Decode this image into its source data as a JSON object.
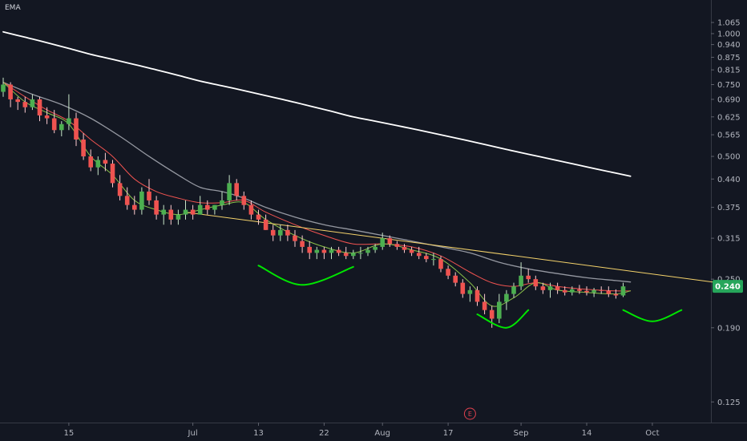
{
  "chart_data": {
    "type": "line",
    "title": "EMA",
    "y_axis": {
      "scale": "log",
      "ylim": [
        0.118,
        1.14
      ],
      "side": "right",
      "tick_labels": [
        "1.065",
        "1.000",
        "0.940",
        "0.875",
        "0.815",
        "0.750",
        "0.690",
        "0.625",
        "0.565",
        "0.500",
        "0.440",
        "0.375",
        "0.315",
        "0.250",
        "0.190",
        "0.125"
      ]
    },
    "x_axis": {
      "tick_labels": [
        "15",
        "Jul",
        "13",
        "22",
        "Aug",
        "17",
        "Sep",
        "14",
        "Oct"
      ],
      "tick_positions": [
        9,
        26,
        35,
        44,
        52,
        61,
        71,
        80,
        89
      ]
    },
    "last_price": {
      "label": "0.240",
      "value": 0.24
    },
    "event_marker": {
      "label": "E",
      "bar": 64
    },
    "candles": [
      [
        0.72,
        0.78,
        0.7,
        0.75
      ],
      [
        0.75,
        0.76,
        0.66,
        0.69
      ],
      [
        0.69,
        0.7,
        0.65,
        0.68
      ],
      [
        0.68,
        0.7,
        0.64,
        0.66
      ],
      [
        0.66,
        0.71,
        0.65,
        0.69
      ],
      [
        0.69,
        0.7,
        0.61,
        0.63
      ],
      [
        0.63,
        0.66,
        0.6,
        0.62
      ],
      [
        0.62,
        0.65,
        0.57,
        0.58
      ],
      [
        0.58,
        0.61,
        0.56,
        0.6
      ],
      [
        0.6,
        0.71,
        0.58,
        0.62
      ],
      [
        0.62,
        0.64,
        0.53,
        0.55
      ],
      [
        0.55,
        0.57,
        0.49,
        0.5
      ],
      [
        0.5,
        0.52,
        0.46,
        0.47
      ],
      [
        0.47,
        0.5,
        0.45,
        0.49
      ],
      [
        0.49,
        0.51,
        0.46,
        0.48
      ],
      [
        0.48,
        0.49,
        0.42,
        0.43
      ],
      [
        0.43,
        0.45,
        0.39,
        0.4
      ],
      [
        0.4,
        0.42,
        0.37,
        0.38
      ],
      [
        0.38,
        0.4,
        0.36,
        0.37
      ],
      [
        0.37,
        0.42,
        0.36,
        0.41
      ],
      [
        0.41,
        0.44,
        0.38,
        0.39
      ],
      [
        0.39,
        0.4,
        0.35,
        0.36
      ],
      [
        0.36,
        0.38,
        0.34,
        0.37
      ],
      [
        0.37,
        0.38,
        0.34,
        0.35
      ],
      [
        0.35,
        0.37,
        0.34,
        0.36
      ],
      [
        0.36,
        0.39,
        0.35,
        0.37
      ],
      [
        0.37,
        0.38,
        0.35,
        0.36
      ],
      [
        0.36,
        0.4,
        0.36,
        0.38
      ],
      [
        0.38,
        0.39,
        0.36,
        0.37
      ],
      [
        0.37,
        0.38,
        0.36,
        0.38
      ],
      [
        0.38,
        0.41,
        0.37,
        0.39
      ],
      [
        0.39,
        0.45,
        0.38,
        0.43
      ],
      [
        0.43,
        0.44,
        0.39,
        0.4
      ],
      [
        0.4,
        0.41,
        0.37,
        0.38
      ],
      [
        0.38,
        0.39,
        0.35,
        0.36
      ],
      [
        0.36,
        0.37,
        0.34,
        0.35
      ],
      [
        0.35,
        0.36,
        0.33,
        0.33
      ],
      [
        0.33,
        0.34,
        0.31,
        0.32
      ],
      [
        0.32,
        0.34,
        0.31,
        0.33
      ],
      [
        0.33,
        0.34,
        0.31,
        0.32
      ],
      [
        0.32,
        0.33,
        0.3,
        0.31
      ],
      [
        0.31,
        0.32,
        0.29,
        0.3
      ],
      [
        0.3,
        0.31,
        0.28,
        0.29
      ],
      [
        0.29,
        0.3,
        0.28,
        0.295
      ],
      [
        0.295,
        0.3,
        0.28,
        0.29
      ],
      [
        0.29,
        0.3,
        0.28,
        0.295
      ],
      [
        0.295,
        0.3,
        0.285,
        0.29
      ],
      [
        0.29,
        0.3,
        0.28,
        0.285
      ],
      [
        0.285,
        0.295,
        0.28,
        0.29
      ],
      [
        0.29,
        0.3,
        0.28,
        0.29
      ],
      [
        0.29,
        0.3,
        0.285,
        0.295
      ],
      [
        0.295,
        0.305,
        0.29,
        0.3
      ],
      [
        0.3,
        0.325,
        0.295,
        0.315
      ],
      [
        0.315,
        0.32,
        0.3,
        0.305
      ],
      [
        0.305,
        0.31,
        0.295,
        0.3
      ],
      [
        0.3,
        0.305,
        0.29,
        0.295
      ],
      [
        0.295,
        0.3,
        0.285,
        0.29
      ],
      [
        0.29,
        0.3,
        0.28,
        0.285
      ],
      [
        0.285,
        0.29,
        0.275,
        0.28
      ],
      [
        0.28,
        0.29,
        0.27,
        0.28
      ],
      [
        0.28,
        0.285,
        0.26,
        0.265
      ],
      [
        0.265,
        0.27,
        0.25,
        0.255
      ],
      [
        0.255,
        0.26,
        0.24,
        0.245
      ],
      [
        0.245,
        0.25,
        0.225,
        0.23
      ],
      [
        0.23,
        0.24,
        0.22,
        0.235
      ],
      [
        0.235,
        0.24,
        0.215,
        0.22
      ],
      [
        0.22,
        0.23,
        0.205,
        0.21
      ],
      [
        0.21,
        0.215,
        0.19,
        0.2
      ],
      [
        0.2,
        0.23,
        0.195,
        0.22
      ],
      [
        0.22,
        0.235,
        0.21,
        0.23
      ],
      [
        0.23,
        0.245,
        0.225,
        0.24
      ],
      [
        0.24,
        0.275,
        0.235,
        0.255
      ],
      [
        0.255,
        0.265,
        0.245,
        0.25
      ],
      [
        0.25,
        0.255,
        0.235,
        0.24
      ],
      [
        0.24,
        0.245,
        0.23,
        0.235
      ],
      [
        0.235,
        0.245,
        0.225,
        0.24
      ],
      [
        0.24,
        0.245,
        0.23,
        0.235
      ],
      [
        0.235,
        0.24,
        0.228,
        0.232
      ],
      [
        0.232,
        0.24,
        0.228,
        0.236
      ],
      [
        0.236,
        0.242,
        0.23,
        0.234
      ],
      [
        0.234,
        0.24,
        0.228,
        0.232
      ],
      [
        0.232,
        0.238,
        0.226,
        0.235
      ],
      [
        0.235,
        0.24,
        0.23,
        0.234
      ],
      [
        0.234,
        0.24,
        0.226,
        0.23
      ],
      [
        0.23,
        0.236,
        0.224,
        0.228
      ],
      [
        0.228,
        0.245,
        0.226,
        0.24
      ]
    ],
    "ema_long": [
      [
        0,
        1.01
      ],
      [
        3,
        0.98
      ],
      [
        6,
        0.95
      ],
      [
        9,
        0.92
      ],
      [
        12,
        0.89
      ],
      [
        15,
        0.865
      ],
      [
        18,
        0.84
      ],
      [
        21,
        0.815
      ],
      [
        24,
        0.79
      ],
      [
        27,
        0.765
      ],
      [
        30,
        0.745
      ],
      [
        33,
        0.725
      ],
      [
        36,
        0.705
      ],
      [
        39,
        0.685
      ],
      [
        42,
        0.665
      ],
      [
        45,
        0.645
      ],
      [
        48,
        0.625
      ],
      [
        51,
        0.61
      ],
      [
        54,
        0.595
      ],
      [
        57,
        0.58
      ],
      [
        60,
        0.565
      ],
      [
        63,
        0.55
      ],
      [
        66,
        0.535
      ],
      [
        69,
        0.52
      ],
      [
        72,
        0.506
      ],
      [
        75,
        0.493
      ],
      [
        78,
        0.48
      ],
      [
        81,
        0.467
      ],
      [
        84,
        0.455
      ],
      [
        86,
        0.447
      ]
    ],
    "ema_gray": [
      [
        0,
        0.76
      ],
      [
        4,
        0.71
      ],
      [
        8,
        0.67
      ],
      [
        12,
        0.62
      ],
      [
        16,
        0.56
      ],
      [
        20,
        0.5
      ],
      [
        24,
        0.45
      ],
      [
        27,
        0.42
      ],
      [
        30,
        0.41
      ],
      [
        33,
        0.395
      ],
      [
        36,
        0.375
      ],
      [
        40,
        0.355
      ],
      [
        44,
        0.34
      ],
      [
        48,
        0.33
      ],
      [
        52,
        0.32
      ],
      [
        56,
        0.31
      ],
      [
        60,
        0.3
      ],
      [
        64,
        0.29
      ],
      [
        68,
        0.275
      ],
      [
        72,
        0.265
      ],
      [
        76,
        0.258
      ],
      [
        80,
        0.252
      ],
      [
        84,
        0.248
      ],
      [
        86,
        0.246
      ]
    ],
    "ema_red": [
      [
        0,
        0.76
      ],
      [
        3,
        0.7
      ],
      [
        6,
        0.65
      ],
      [
        9,
        0.61
      ],
      [
        12,
        0.55
      ],
      [
        15,
        0.5
      ],
      [
        18,
        0.44
      ],
      [
        21,
        0.41
      ],
      [
        24,
        0.395
      ],
      [
        27,
        0.385
      ],
      [
        30,
        0.385
      ],
      [
        33,
        0.39
      ],
      [
        36,
        0.365
      ],
      [
        40,
        0.34
      ],
      [
        44,
        0.32
      ],
      [
        48,
        0.305
      ],
      [
        52,
        0.305
      ],
      [
        56,
        0.3
      ],
      [
        60,
        0.285
      ],
      [
        64,
        0.26
      ],
      [
        67,
        0.245
      ],
      [
        70,
        0.24
      ],
      [
        73,
        0.245
      ],
      [
        76,
        0.24
      ],
      [
        80,
        0.236
      ],
      [
        84,
        0.234
      ],
      [
        86,
        0.234
      ]
    ],
    "ema_green": [
      [
        0,
        0.76
      ],
      [
        3,
        0.68
      ],
      [
        6,
        0.64
      ],
      [
        9,
        0.6
      ],
      [
        12,
        0.5
      ],
      [
        15,
        0.45
      ],
      [
        18,
        0.39
      ],
      [
        21,
        0.37
      ],
      [
        24,
        0.36
      ],
      [
        27,
        0.37
      ],
      [
        30,
        0.38
      ],
      [
        33,
        0.385
      ],
      [
        36,
        0.35
      ],
      [
        40,
        0.32
      ],
      [
        44,
        0.3
      ],
      [
        48,
        0.29
      ],
      [
        52,
        0.305
      ],
      [
        56,
        0.295
      ],
      [
        60,
        0.28
      ],
      [
        64,
        0.245
      ],
      [
        67,
        0.215
      ],
      [
        70,
        0.225
      ],
      [
        73,
        0.245
      ],
      [
        76,
        0.235
      ],
      [
        80,
        0.232
      ],
      [
        84,
        0.23
      ],
      [
        86,
        0.234
      ]
    ],
    "trendline": [
      [
        25,
        0.365
      ],
      [
        98,
        0.245
      ]
    ],
    "arcs": [
      [
        [
          35,
          0.27
        ],
        [
          41,
          0.242
        ],
        [
          48,
          0.268
        ]
      ],
      [
        [
          65,
          0.205
        ],
        [
          69,
          0.19
        ],
        [
          72,
          0.21
        ]
      ],
      [
        [
          85,
          0.21
        ],
        [
          89,
          0.197
        ],
        [
          93,
          0.21
        ]
      ]
    ],
    "colors": {
      "up": "#26a69a",
      "up_fill": "#4caf50",
      "down": "#ef5350",
      "ema_long": "#ffffff",
      "ema_gray": "#9598a1",
      "ema_red": "#ef5350",
      "ema_green": "#8bc34a",
      "trendline": "#f5d36b",
      "arc": "#00e600",
      "price_tag": "#26a65b",
      "event": "#e0414f"
    }
  }
}
